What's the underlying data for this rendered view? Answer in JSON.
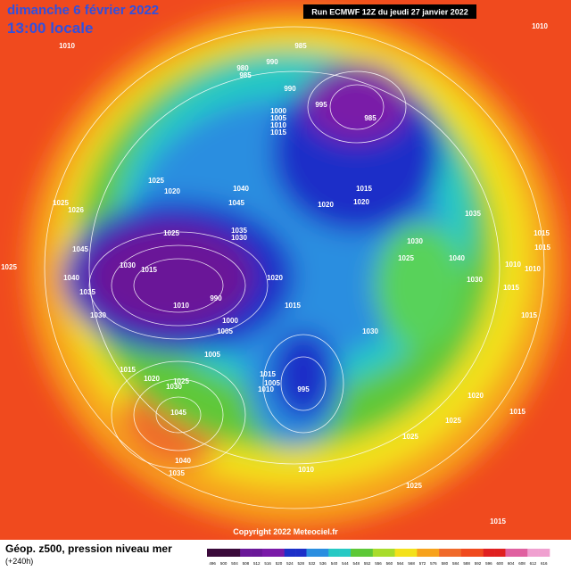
{
  "header": {
    "title": "dimanche 6 février 2022",
    "subtitle": "13:00 locale",
    "run": "Run ECMWF 12Z du jeudi 27 janvier 2022"
  },
  "pressure_labels": [
    "1010",
    "985",
    "980",
    "985",
    "990",
    "990",
    "995",
    "1000",
    "1005",
    "1010",
    "1015",
    "985",
    "1010",
    "1025",
    "1020",
    "1040",
    "1045",
    "1025",
    "1026",
    "1025",
    "1035",
    "1030",
    "1015",
    "1020",
    "1020",
    "1035",
    "1015",
    "1030",
    "1025",
    "1040",
    "1045",
    "1025",
    "1030",
    "1015",
    "1010",
    "1015",
    "1010",
    "1040",
    "1035",
    "1020",
    "1015",
    "1030",
    "1015",
    "1010",
    "990",
    "1030",
    "1000",
    "1005",
    "1030",
    "1015",
    "1005",
    "1015",
    "1020",
    "1025",
    "1030",
    "1015",
    "1005",
    "1010",
    "995",
    "1020",
    "1025",
    "1015",
    "1045",
    "1025",
    "1040",
    "1035",
    "1010",
    "1025",
    "1015"
  ],
  "footer": {
    "caption": "Géop. z500, pression niveau mer",
    "lead": "(+240h)",
    "copyright": "Copyright 2022 Meteociel.fr"
  },
  "color_scale": {
    "labels": [
      "496",
      "500",
      "504",
      "508",
      "512",
      "516",
      "520",
      "524",
      "528",
      "532",
      "536",
      "540",
      "544",
      "548",
      "552",
      "556",
      "560",
      "564",
      "568",
      "572",
      "576",
      "580",
      "584",
      "588",
      "592",
      "596",
      "600",
      "604",
      "608",
      "612",
      "616"
    ]
  }
}
